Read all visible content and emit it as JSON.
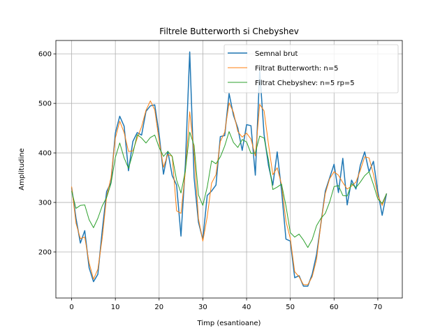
{
  "chart_data": {
    "type": "line",
    "title": "Filtrele Butterworth si Chebyshev",
    "xlabel": "Timp (esantioane)",
    "ylabel": "Amplitudine",
    "xlim": [
      -3.6,
      75.6
    ],
    "ylim": [
      107,
      627
    ],
    "xticks": [
      0,
      10,
      20,
      30,
      40,
      50,
      60,
      70
    ],
    "yticks": [
      200,
      300,
      400,
      500,
      600
    ],
    "grid": true,
    "legend_position": "top-right",
    "series": [
      {
        "name": "Semnal brut",
        "color": "#1f77b4",
        "values": [
          330,
          268,
          218,
          243,
          168,
          140,
          155,
          243,
          322,
          340,
          440,
          474,
          454,
          364,
          423,
          441,
          436,
          484,
          495,
          497,
          438,
          357,
          403,
          354,
          335,
          232,
          376,
          604,
          350,
          260,
          225,
          314,
          323,
          335,
          433,
          435,
          520,
          476,
          450,
          405,
          457,
          455,
          355,
          566,
          437,
          375,
          335,
          402,
          323,
          226,
          222,
          148,
          152,
          131,
          131,
          155,
          195,
          258,
          323,
          350,
          377,
          320,
          389,
          295,
          345,
          327,
          375,
          402,
          362,
          383,
          322,
          274,
          318
        ]
      },
      {
        "name": "Filtrat Butterworth: n=5",
        "color": "#ff7f0e",
        "values": [
          332,
          258,
          227,
          230,
          178,
          145,
          165,
          228,
          312,
          350,
          430,
          464,
          441,
          403,
          404,
          430,
          453,
          486,
          505,
          487,
          425,
          371,
          397,
          393,
          283,
          278,
          362,
          483,
          400,
          267,
          222,
          271,
          339,
          356,
          423,
          442,
          501,
          482,
          443,
          432,
          440,
          428,
          394,
          498,
          485,
          418,
          356,
          370,
          336,
          262,
          227,
          160,
          150,
          134,
          134,
          150,
          185,
          258,
          318,
          348,
          362,
          355,
          340,
          327,
          333,
          341,
          365,
          392,
          390,
          357,
          314,
          294,
          318
        ]
      },
      {
        "name": "Filtrat Chebyshev: n=5 rp=5",
        "color": "#2ca02c",
        "values": [
          323,
          288,
          294,
          295,
          265,
          249,
          268,
          293,
          310,
          338,
          391,
          420,
          390,
          369,
          399,
          437,
          430,
          420,
          431,
          436,
          411,
          393,
          403,
          393,
          345,
          319,
          364,
          442,
          415,
          315,
          294,
          331,
          384,
          378,
          392,
          414,
          443,
          421,
          411,
          427,
          422,
          399,
          400,
          434,
          430,
          386,
          326,
          331,
          337,
          293,
          239,
          230,
          236,
          224,
          209,
          225,
          253,
          268,
          278,
          301,
          332,
          334,
          314,
          313,
          338,
          330,
          341,
          354,
          362,
          336,
          307,
          298,
          318
        ]
      }
    ]
  }
}
